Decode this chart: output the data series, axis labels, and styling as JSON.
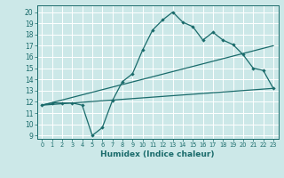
{
  "xlabel": "Humidex (Indice chaleur)",
  "bg_color": "#cce8e8",
  "grid_color": "#ffffff",
  "line_color": "#1a6b6b",
  "xlim": [
    -0.5,
    23.5
  ],
  "ylim": [
    8.7,
    20.6
  ],
  "xticks": [
    0,
    1,
    2,
    3,
    4,
    5,
    6,
    7,
    8,
    9,
    10,
    11,
    12,
    13,
    14,
    15,
    16,
    17,
    18,
    19,
    20,
    21,
    22,
    23
  ],
  "yticks": [
    9,
    10,
    11,
    12,
    13,
    14,
    15,
    16,
    17,
    18,
    19,
    20
  ],
  "line1_x": [
    0,
    1,
    2,
    3,
    4,
    5,
    6,
    7,
    8,
    9,
    10,
    11,
    12,
    13,
    14,
    15,
    16,
    17,
    18,
    19,
    20,
    21,
    22,
    23
  ],
  "line1_y": [
    11.7,
    11.9,
    11.9,
    11.9,
    11.7,
    9.0,
    9.7,
    12.1,
    13.8,
    14.5,
    16.6,
    18.4,
    19.3,
    20.0,
    19.1,
    18.7,
    17.5,
    18.2,
    17.5,
    17.1,
    16.2,
    15.0,
    14.8,
    13.2
  ],
  "line2_x": [
    0,
    23
  ],
  "line2_y": [
    11.7,
    13.2
  ],
  "line3_x": [
    0,
    23
  ],
  "line3_y": [
    11.7,
    17.0
  ]
}
